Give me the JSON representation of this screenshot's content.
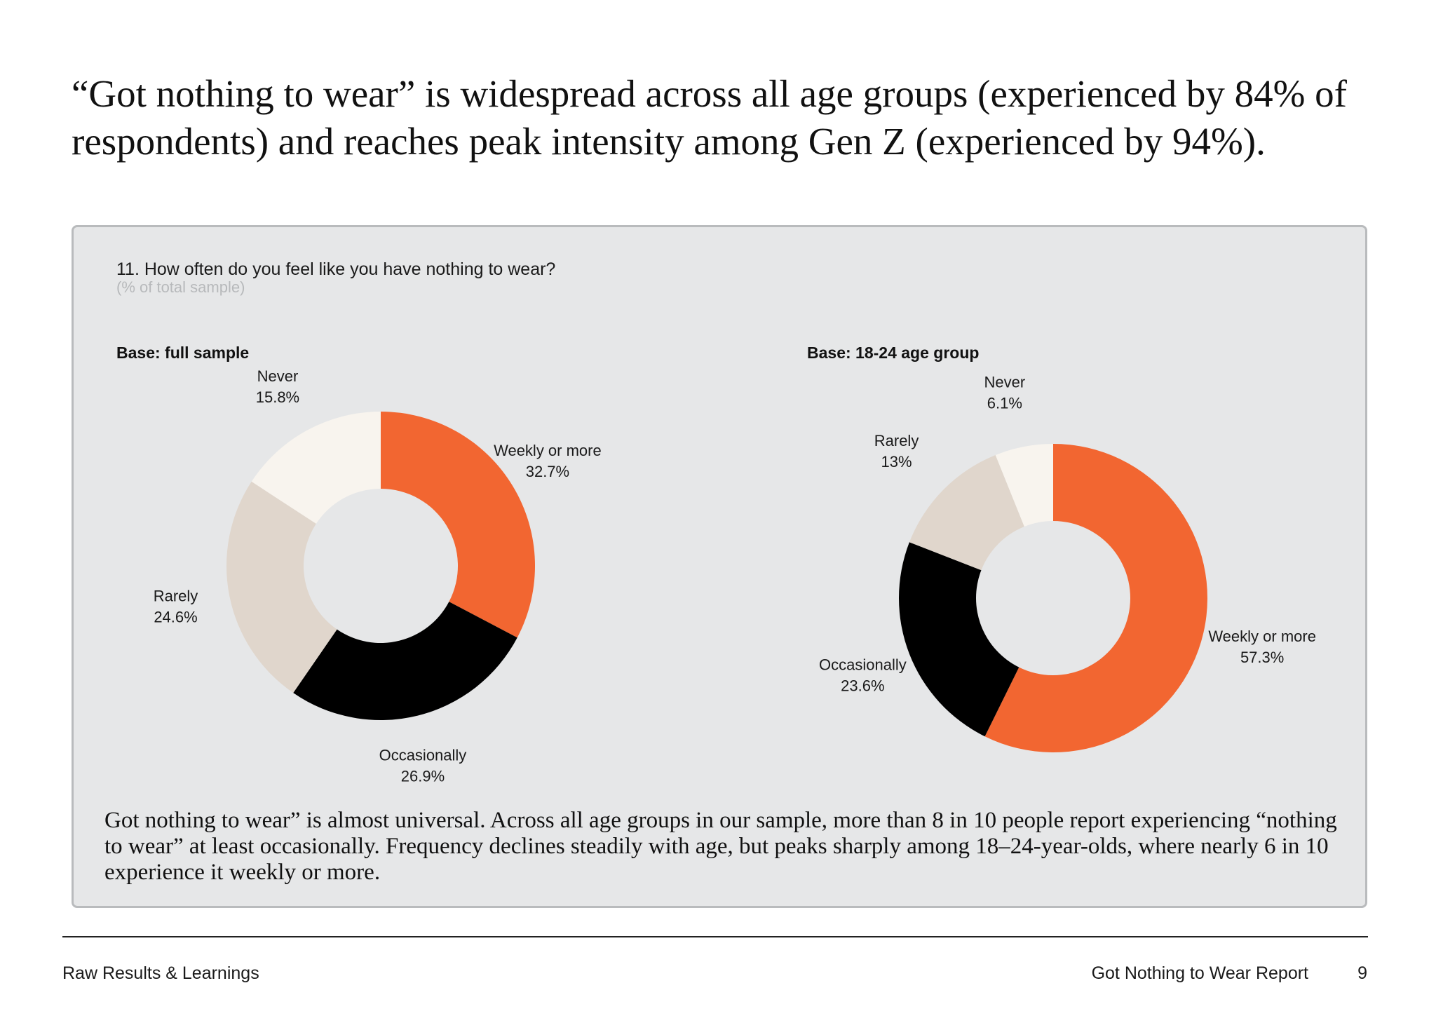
{
  "headline": "“Got nothing to wear” is widespread across all age groups (experienced by 84% of respondents) and reaches peak intensity among Gen Z (experienced by 94%).",
  "panel": {
    "question": "11. How often do you feel like you have nothing to wear?",
    "subnote": "(% of total sample)"
  },
  "colors": {
    "weekly": "#f26631",
    "occasionally": "#000000",
    "rarely": "#e0d6cc",
    "never": "#f8f4ee",
    "panel_background": "#e6e7e8"
  },
  "chart_data": [
    {
      "type": "pie",
      "subtype": "donut",
      "base": "Base: full sample",
      "categories": [
        "Weekly or more",
        "Occasionally",
        "Rarely",
        "Never"
      ],
      "values": [
        32.7,
        26.9,
        24.6,
        15.8
      ],
      "value_labels": [
        "32.7%",
        "26.9%",
        "24.6%",
        "15.8%"
      ],
      "colors": [
        "#f26631",
        "#000000",
        "#e0d6cc",
        "#f8f4ee"
      ]
    },
    {
      "type": "pie",
      "subtype": "donut",
      "base": "Base: 18-24 age group",
      "categories": [
        "Weekly or more",
        "Occasionally",
        "Rarely",
        "Never"
      ],
      "values": [
        57.3,
        23.6,
        13,
        6.1
      ],
      "value_labels": [
        "57.3%",
        "23.6%",
        "13%",
        "6.1%"
      ],
      "colors": [
        "#f26631",
        "#000000",
        "#e0d6cc",
        "#f8f4ee"
      ]
    }
  ],
  "conclusion": "Got nothing to wear” is almost universal. Across all age groups in our sample, more than 8 in 10 people report experiencing “nothing to wear” at least occasionally. Frequency declines steadily with age, but peaks sharply among 18–24-year-olds, where nearly 6 in 10 experience it weekly or more.",
  "footer": {
    "section": "Raw Results & Learnings",
    "report_title": "Got Nothing to Wear Report",
    "page_number": "9"
  }
}
